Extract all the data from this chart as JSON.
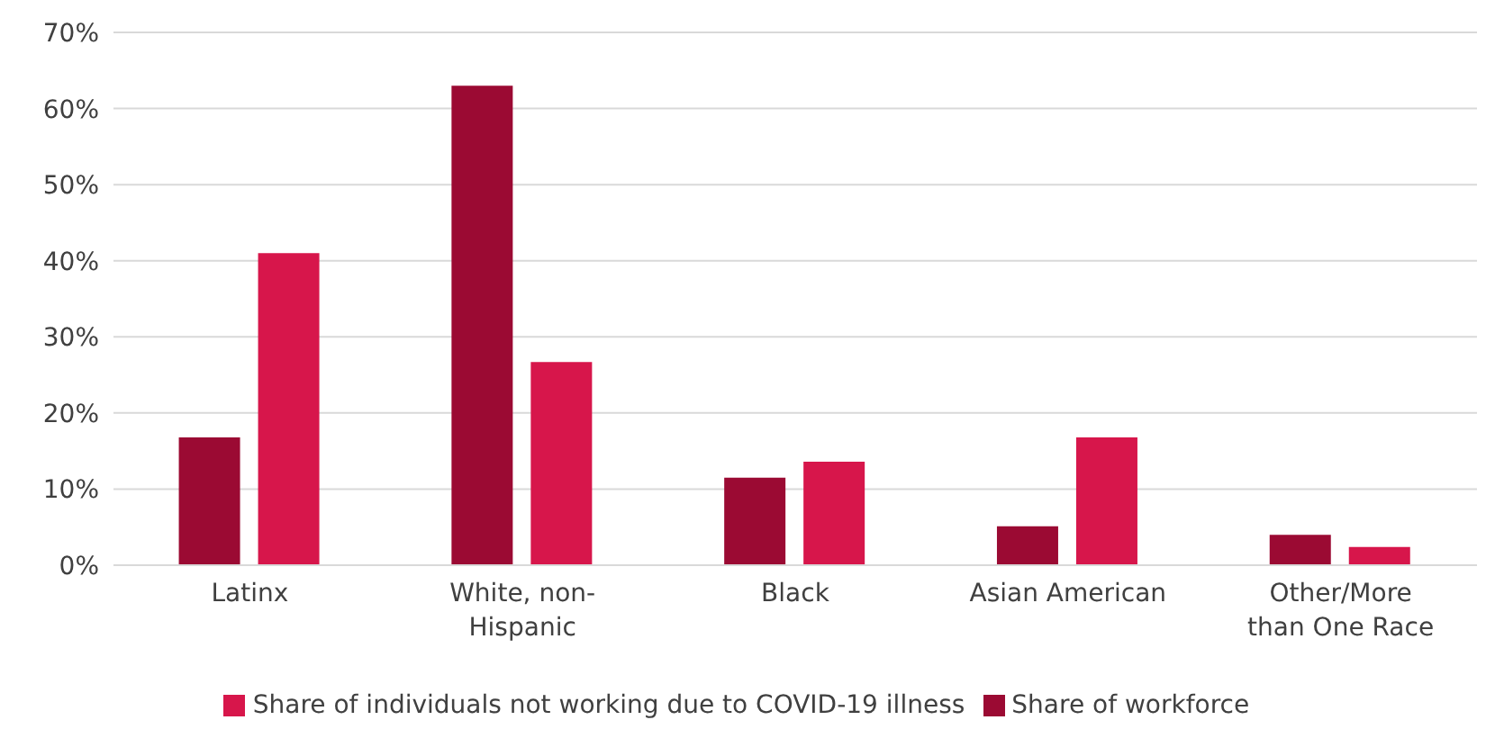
{
  "chart_data": {
    "type": "bar",
    "categories": [
      "Latinx",
      "White, non-Hispanic",
      "Black",
      "Asian American",
      "Other/More than One Race"
    ],
    "series": [
      {
        "name": "Share of workforce",
        "color": "#9b0a33",
        "values": [
          16.8,
          63,
          11.5,
          5.1,
          4
        ]
      },
      {
        "name": "Share of individuals not working due to COVID-19 illness",
        "color": "#d7164b",
        "values": [
          41,
          26.7,
          13.6,
          16.8,
          2.4
        ]
      }
    ],
    "ylim": [
      0,
      70
    ],
    "yticks": [
      {
        "value": 0,
        "label": "0%"
      },
      {
        "value": 10,
        "label": "10%"
      },
      {
        "value": 20,
        "label": "20%"
      },
      {
        "value": 30,
        "label": "30%"
      },
      {
        "value": 40,
        "label": "40%"
      },
      {
        "value": 50,
        "label": "50%"
      },
      {
        "value": 60,
        "label": "60%"
      },
      {
        "value": 70,
        "label": "70%"
      }
    ],
    "grid": "y",
    "legend": "bottom"
  }
}
